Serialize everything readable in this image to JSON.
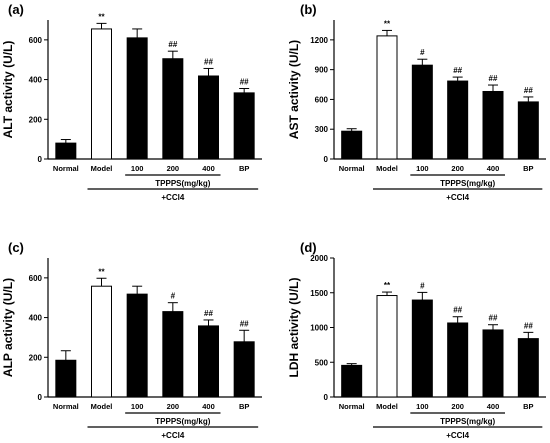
{
  "chart_data": [
    {
      "type": "bar",
      "panel": "(a)",
      "ylabel": "ALT activity (U/L)",
      "ylim": [
        0,
        700
      ],
      "yticks": [
        0,
        200,
        400,
        600
      ],
      "categories": [
        "Normal",
        "Model",
        "100",
        "200",
        "400",
        "BP"
      ],
      "values": [
        80,
        655,
        610,
        505,
        418,
        333
      ],
      "errors": [
        18,
        28,
        45,
        38,
        38,
        22
      ],
      "fills": [
        "#000000",
        "#ffffff",
        "#000000",
        "#000000",
        "#000000",
        "#000000"
      ],
      "annotations": [
        "",
        "**",
        "",
        "##",
        "##",
        "##"
      ],
      "group_label": "TPPPS(mg/kg)",
      "treatment_label": "+CCl4"
    },
    {
      "type": "bar",
      "panel": "(b)",
      "ylabel": "AST activity (U/L)",
      "ylim": [
        0,
        1400
      ],
      "yticks": [
        0,
        300,
        600,
        900,
        1200
      ],
      "categories": [
        "Normal",
        "Model",
        "100",
        "200",
        "400",
        "BP"
      ],
      "values": [
        280,
        1240,
        945,
        785,
        680,
        575
      ],
      "errors": [
        25,
        55,
        60,
        40,
        65,
        50
      ],
      "fills": [
        "#000000",
        "#ffffff",
        "#000000",
        "#000000",
        "#000000",
        "#000000"
      ],
      "annotations": [
        "",
        "**",
        "#",
        "##",
        "##",
        "##"
      ],
      "group_label": "TPPPS(mg/kg)",
      "treatment_label": "+CCl4"
    },
    {
      "type": "bar",
      "panel": "(c)",
      "ylabel": "ALP activity (U/L)",
      "ylim": [
        0,
        700
      ],
      "yticks": [
        0,
        200,
        400,
        600
      ],
      "categories": [
        "Normal",
        "Model",
        "100",
        "200",
        "400",
        "BP"
      ],
      "values": [
        185,
        558,
        518,
        430,
        358,
        278
      ],
      "errors": [
        48,
        40,
        40,
        45,
        30,
        58
      ],
      "fills": [
        "#000000",
        "#ffffff",
        "#000000",
        "#000000",
        "#000000",
        "#000000"
      ],
      "annotations": [
        "",
        "**",
        "",
        "#",
        "##",
        "##"
      ],
      "group_label": "TPPPS(mg/kg)",
      "treatment_label": "+CCl4"
    },
    {
      "type": "bar",
      "panel": "(d)",
      "ylabel": "LDH activity (U/L)",
      "ylim": [
        0,
        2000
      ],
      "yticks": [
        0,
        500,
        1000,
        1500,
        2000
      ],
      "categories": [
        "Normal",
        "Model",
        "100",
        "200",
        "400",
        "BP"
      ],
      "values": [
        455,
        1460,
        1395,
        1065,
        965,
        840
      ],
      "errors": [
        25,
        50,
        110,
        90,
        75,
        90
      ],
      "fills": [
        "#000000",
        "#ffffff",
        "#000000",
        "#000000",
        "#000000",
        "#000000"
      ],
      "annotations": [
        "",
        "**",
        "#",
        "##",
        "##",
        "##"
      ],
      "group_label": "TPPPS(mg/kg)",
      "treatment_label": "+CCl4"
    }
  ]
}
